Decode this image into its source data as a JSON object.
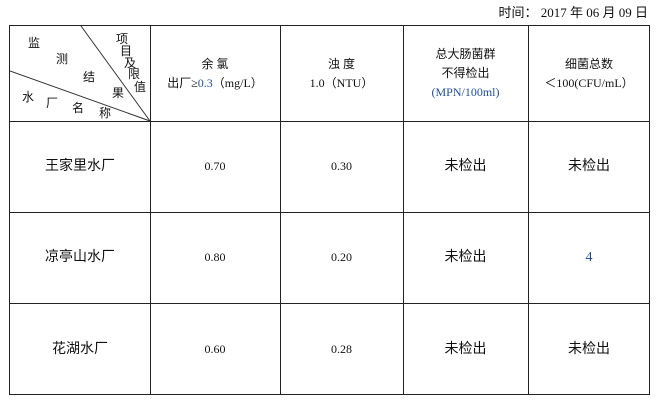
{
  "date": {
    "label": "时间：",
    "value": "2017 年 06 月 09 日"
  },
  "header_corner": {
    "top_chars": [
      "项",
      "目",
      "及",
      "限",
      "值"
    ],
    "middle_chars": [
      "监",
      "测",
      "结",
      "果"
    ],
    "bottom_chars": [
      "水",
      "厂",
      "名",
      "称"
    ]
  },
  "columns": [
    {
      "name": "余 氯",
      "limit_prefix": "出厂≥",
      "limit_value": "0.3",
      "limit_unit": "（mg/L）"
    },
    {
      "name": "浊 度",
      "limit": "1.0（NTU）"
    },
    {
      "name": "总大肠菌群",
      "limit": "不得检出",
      "unit": "(MPN/100ml)"
    },
    {
      "name": "细菌总数",
      "limit": "＜100(CFU/mL）"
    }
  ],
  "rows": [
    {
      "plant": "王家里水厂",
      "values": [
        "0.70",
        "0.30",
        "未检出",
        "未检出"
      ]
    },
    {
      "plant": "凉亭山水厂",
      "values": [
        "0.80",
        "0.20",
        "未检出",
        "4"
      ]
    },
    {
      "plant": "花湖水厂",
      "values": [
        "0.60",
        "0.28",
        "未检出",
        "未检出"
      ]
    }
  ]
}
